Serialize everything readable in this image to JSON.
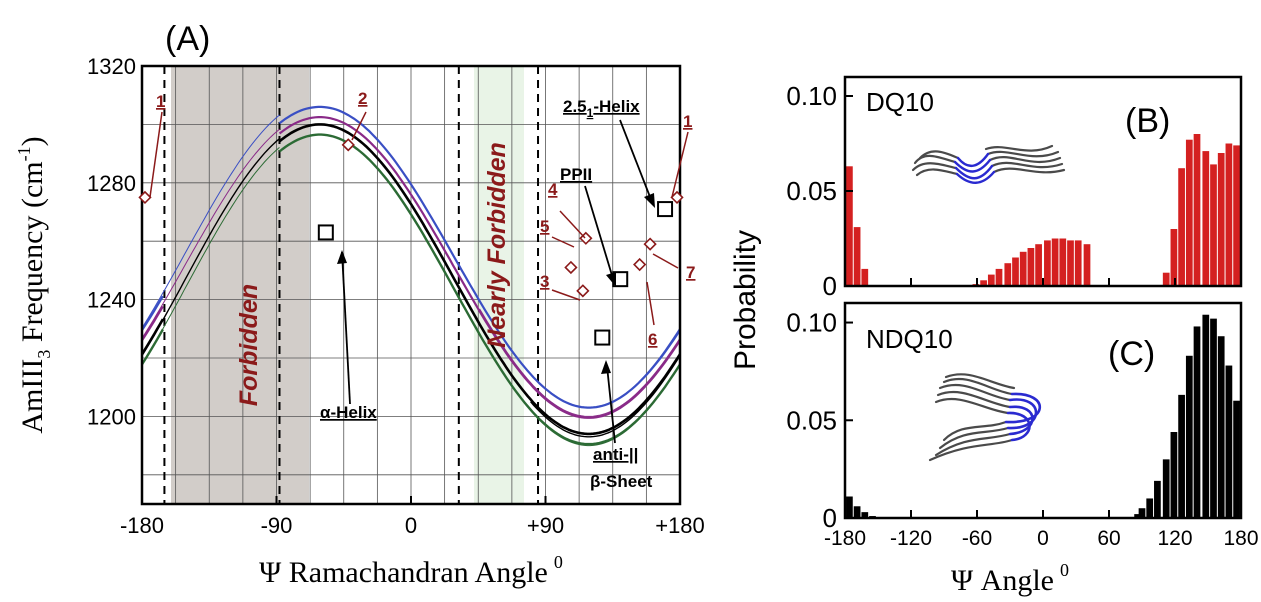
{
  "colors": {
    "forbidden_fill": "#d2cdc9",
    "nearly_forbidden_fill": "#e9f4e7",
    "annotation_red": "#8b1a1a",
    "curve_blue": "#3a4fc4",
    "curve_purple": "#8a2a88",
    "curve_black": "#000000",
    "curve_green": "#2c6b35",
    "bar_red": "#d42020",
    "bar_black": "#000000"
  },
  "chart_data": [
    {
      "type": "line",
      "panel_label": "(A)",
      "xlabel": "Ψ Ramachandran Angle",
      "xlabel_sup": "0",
      "ylabel": "AmIII",
      "ylabel_sub": "3",
      "ylabel_rest": " Frequency (cm",
      "ylabel_sup": "-1",
      "ylabel_close": ")",
      "xlim": [
        -180,
        180
      ],
      "ylim": [
        1170,
        1320
      ],
      "x_ticks": [
        {
          "v": -180,
          "label": "-180"
        },
        {
          "v": -90,
          "label": "-90"
        },
        {
          "v": 0,
          "label": "0"
        },
        {
          "v": 90,
          "label": "+90"
        },
        {
          "v": 180,
          "label": "+180"
        }
      ],
      "y_ticks": [
        {
          "v": 1200,
          "label": "1200"
        },
        {
          "v": 1240,
          "label": "1240"
        },
        {
          "v": 1280,
          "label": "1280"
        },
        {
          "v": 1320,
          "label": "1320"
        }
      ],
      "grid": true,
      "regions": [
        {
          "name": "Forbidden",
          "x": [
            -165,
            -88
          ],
          "fill": "#d2cdc9"
        },
        {
          "name": "Nearly Forbidden",
          "x": [
            45,
            75
          ],
          "fill": "#e9f4e7"
        }
      ],
      "dashed_lines_x": [
        -165,
        -88,
        32,
        85
      ],
      "series": [
        {
          "color": "#3a4fc4",
          "mean": 1254.5,
          "amp": 51.5,
          "phase": 61,
          "width": 2.2,
          "excluded": [
            -165,
            -88
          ]
        },
        {
          "color": "#3a4fc4",
          "mean": 1256,
          "amp": 53,
          "phase": 61,
          "width": 1.0,
          "excluded": [
            -88,
            85
          ]
        },
        {
          "color": "#8a2a88",
          "mean": 1251,
          "amp": 51.5,
          "phase": 61,
          "width": 2.2,
          "excluded": [
            -165,
            -88
          ]
        },
        {
          "color": "#000000",
          "mean": 1247,
          "amp": 53,
          "phase": 61,
          "width": 2.6,
          "excluded": [
            -165,
            -88
          ]
        },
        {
          "color": "#2c6b35",
          "mean": 1243.5,
          "amp": 53,
          "phase": 61,
          "width": 2.4,
          "excluded": [
            -165,
            -88
          ]
        },
        {
          "color": "#8a2a88",
          "mean": 1252,
          "amp": 52,
          "phase": 61,
          "width": 1.0,
          "excluded": [
            -88,
            45
          ]
        },
        {
          "color": "#000000",
          "mean": 1247,
          "amp": 54,
          "phase": 61,
          "width": 1.4,
          "excluded": [
            -88,
            80
          ]
        },
        {
          "color": "#2c6b35",
          "mean": 1244,
          "amp": 54,
          "phase": 61,
          "width": 1.0,
          "excluded": [
            -88,
            80
          ]
        }
      ],
      "square_markers": [
        {
          "x": -57,
          "y": 1263
        },
        {
          "x": 140,
          "y": 1247
        },
        {
          "x": 128,
          "y": 1227
        },
        {
          "x": 170,
          "y": 1271
        }
      ],
      "diamond_markers": [
        {
          "x": -178,
          "y": 1275,
          "label": "1"
        },
        {
          "x": 178,
          "y": 1275,
          "label": "1"
        },
        {
          "x": -42,
          "y": 1293,
          "label": "2"
        },
        {
          "x": 115,
          "y": 1243,
          "label": "3"
        },
        {
          "x": 117,
          "y": 1261,
          "label": "4"
        },
        {
          "x": 107,
          "y": 1251,
          "label": "5"
        },
        {
          "x": 153,
          "y": 1252,
          "label": "6"
        },
        {
          "x": 160,
          "y": 1259,
          "label": "7"
        }
      ],
      "annotations": {
        "forbidden": "Forbidden",
        "nearly_forbidden": "Nearly Forbidden",
        "alpha_helix": "α-Helix",
        "ppii": "PPII",
        "helix_251": "2.5",
        "helix_251_sub": "1",
        "helix_251_rest": "-Helix",
        "anti_sheet_1": "anti-||",
        "anti_sheet_2": "β-Sheet"
      }
    },
    {
      "type": "bar",
      "panel_label": "(B)",
      "inset_label": "DQ10",
      "xlim": [
        -180,
        180
      ],
      "ylim": [
        0,
        0.11
      ],
      "y_ticks": [
        {
          "v": 0,
          "label": "0"
        },
        {
          "v": 0.05,
          "label": "0.05"
        },
        {
          "v": 0.1,
          "label": "0.10"
        }
      ],
      "bin_width": 7.2,
      "bins": [
        {
          "x": -176,
          "v": 0.063
        },
        {
          "x": -169,
          "v": 0.031
        },
        {
          "x": -162,
          "v": 0.009
        },
        {
          "x": -61,
          "v": 0.001
        },
        {
          "x": -54,
          "v": 0.003
        },
        {
          "x": -47,
          "v": 0.006
        },
        {
          "x": -40,
          "v": 0.009
        },
        {
          "x": -32,
          "v": 0.012
        },
        {
          "x": -25,
          "v": 0.015
        },
        {
          "x": -18,
          "v": 0.018
        },
        {
          "x": -11,
          "v": 0.02
        },
        {
          "x": -4,
          "v": 0.022
        },
        {
          "x": 4,
          "v": 0.024
        },
        {
          "x": 11,
          "v": 0.025
        },
        {
          "x": 18,
          "v": 0.025
        },
        {
          "x": 25,
          "v": 0.024
        },
        {
          "x": 32,
          "v": 0.024
        },
        {
          "x": 40,
          "v": 0.022
        },
        {
          "x": 112,
          "v": 0.007
        },
        {
          "x": 119,
          "v": 0.03
        },
        {
          "x": 126,
          "v": 0.062
        },
        {
          "x": 133,
          "v": 0.077
        },
        {
          "x": 140,
          "v": 0.08
        },
        {
          "x": 148,
          "v": 0.071
        },
        {
          "x": 155,
          "v": 0.064
        },
        {
          "x": 162,
          "v": 0.07
        },
        {
          "x": 169,
          "v": 0.075
        },
        {
          "x": 176,
          "v": 0.074
        }
      ]
    },
    {
      "type": "bar",
      "panel_label": "(C)",
      "inset_label": "NDQ10",
      "xlabel": "Ψ Angle",
      "xlabel_sup": "0",
      "ylabel": "Probability",
      "xlim": [
        -180,
        180
      ],
      "ylim": [
        0,
        0.11
      ],
      "x_ticks": [
        {
          "v": -180,
          "label": "-180"
        },
        {
          "v": -120,
          "label": "-120"
        },
        {
          "v": -60,
          "label": "-60"
        },
        {
          "v": 0,
          "label": "0"
        },
        {
          "v": 60,
          "label": "60"
        },
        {
          "v": 120,
          "label": "120"
        },
        {
          "v": 180,
          "label": "180"
        }
      ],
      "y_ticks": [
        {
          "v": 0,
          "label": "0"
        },
        {
          "v": 0.05,
          "label": "0.05"
        },
        {
          "v": 0.1,
          "label": "0.10"
        }
      ],
      "bin_width": 7.2,
      "bins": [
        {
          "x": -176,
          "v": 0.011
        },
        {
          "x": -169,
          "v": 0.006
        },
        {
          "x": -162,
          "v": 0.003
        },
        {
          "x": -155,
          "v": 0.001
        },
        {
          "x": 86,
          "v": 0.002
        },
        {
          "x": 90,
          "v": 0.005
        },
        {
          "x": 97,
          "v": 0.01
        },
        {
          "x": 104,
          "v": 0.019
        },
        {
          "x": 112,
          "v": 0.03
        },
        {
          "x": 119,
          "v": 0.044
        },
        {
          "x": 126,
          "v": 0.063
        },
        {
          "x": 133,
          "v": 0.083
        },
        {
          "x": 140,
          "v": 0.098
        },
        {
          "x": 148,
          "v": 0.104
        },
        {
          "x": 155,
          "v": 0.102
        },
        {
          "x": 162,
          "v": 0.093
        },
        {
          "x": 169,
          "v": 0.078
        },
        {
          "x": 176,
          "v": 0.06
        }
      ]
    }
  ],
  "icons": {
    "dq10_molecule": "extended-peptide-structure-icon",
    "ndq10_molecule": "hairpin-peptide-structure-icon"
  }
}
